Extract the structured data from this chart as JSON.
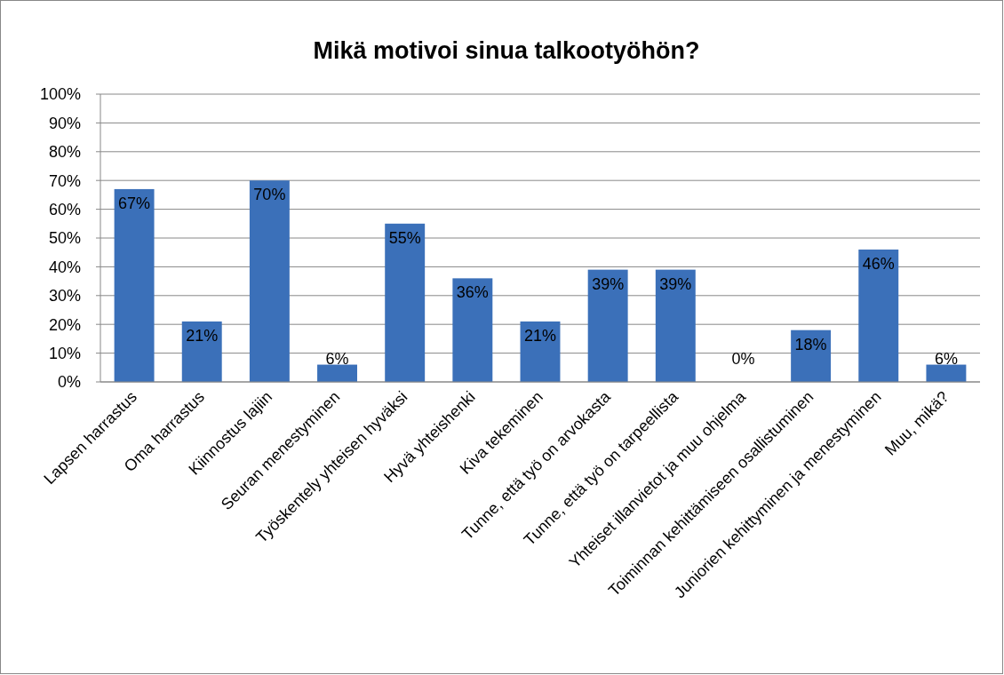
{
  "chart_data": {
    "type": "bar",
    "title": "Mikä motivoi sinua talkootyöhön?",
    "categories": [
      "Lapsen harrastus",
      "Oma harrastus",
      "Kiinnostus lajiin",
      "Seuran menestyminen",
      "Työskentely yhteisen hyväksi",
      "Hyvä yhteishenki",
      "Kiva tekeminen",
      "Tunne, että työ on arvokasta",
      "Tunne, että työ on tarpeellista",
      "Yhteiset illanvietot ja muu ohjelma",
      "Toiminnan kehittämiseen osallistuminen",
      "Juniorien kehittyminen ja menestyminen",
      "Muu, mikä?"
    ],
    "values": [
      67,
      21,
      70,
      6,
      55,
      36,
      21,
      39,
      39,
      0,
      18,
      46,
      6
    ],
    "value_labels": [
      "67%",
      "21%",
      "70%",
      "6%",
      "55%",
      "36%",
      "21%",
      "39%",
      "39%",
      "0%",
      "18%",
      "46%",
      "6%"
    ],
    "color": "#3b70b9",
    "ylim": [
      0,
      100
    ],
    "yticks": [
      {
        "value": 0,
        "label": "0%"
      },
      {
        "value": 10,
        "label": "10%"
      },
      {
        "value": 20,
        "label": "20%"
      },
      {
        "value": 30,
        "label": "30%"
      },
      {
        "value": 40,
        "label": "40%"
      },
      {
        "value": 50,
        "label": "50%"
      },
      {
        "value": 60,
        "label": "60%"
      },
      {
        "value": 70,
        "label": "70%"
      },
      {
        "value": 80,
        "label": "80%"
      },
      {
        "value": 90,
        "label": "90%"
      },
      {
        "value": 100,
        "label": "100%"
      }
    ],
    "grid": "y"
  }
}
